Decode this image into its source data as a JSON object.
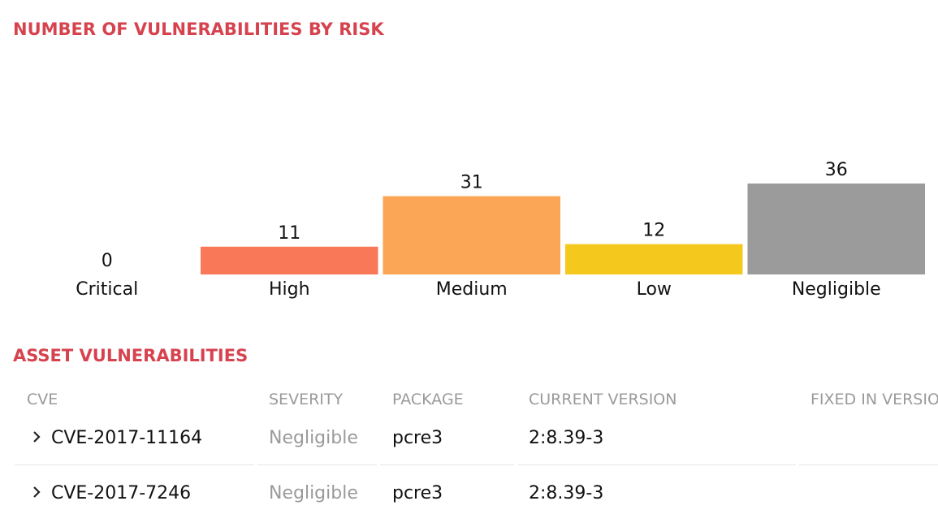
{
  "chart_data": {
    "type": "bar",
    "title": "NUMBER OF VULNERABILITIES BY RISK",
    "categories": [
      "Critical",
      "High",
      "Medium",
      "Low",
      "Negligible"
    ],
    "values": [
      0,
      11,
      31,
      12,
      36
    ],
    "colors": [
      "#d64050",
      "#f87858",
      "#fba656",
      "#f5c81d",
      "#9b9b9b"
    ]
  },
  "table": {
    "title": "ASSET VULNERABILITIES",
    "columns": [
      "CVE",
      "SEVERITY",
      "PACKAGE",
      "CURRENT VERSION",
      "FIXED IN VERSION"
    ],
    "rows": [
      [
        "CVE-2017-11164",
        "Negligible",
        "pcre3",
        "2:8.39-3",
        ""
      ],
      [
        "CVE-2017-7246",
        "Negligible",
        "pcre3",
        "2:8.39-3",
        ""
      ]
    ]
  }
}
